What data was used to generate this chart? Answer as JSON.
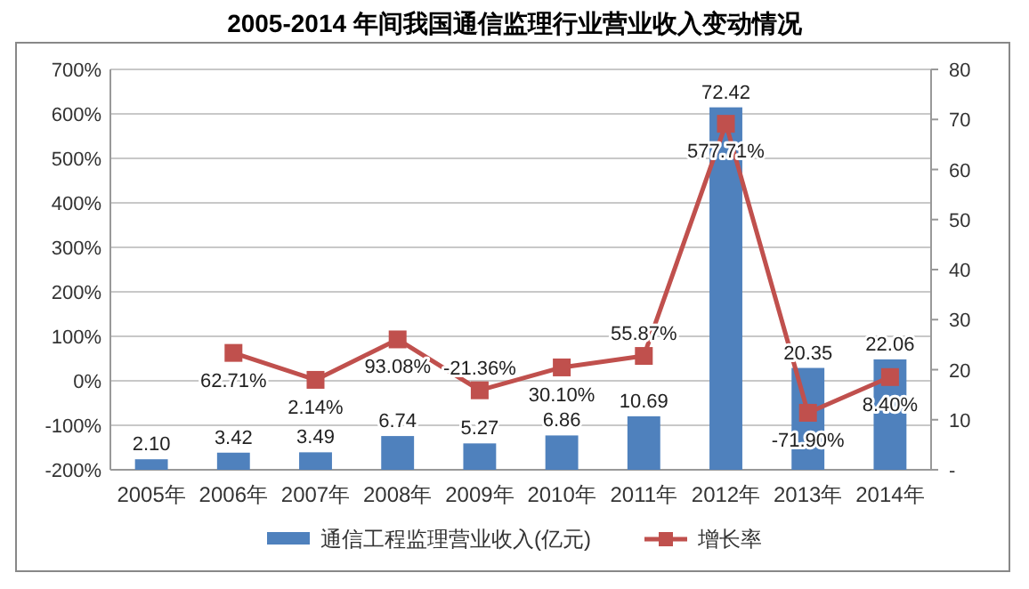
{
  "chart_data": {
    "type": "bar",
    "title": "2005-2014 年间我国通信监理行业营业收入变动情况",
    "categories": [
      "2005年",
      "2006年",
      "2007年",
      "2008年",
      "2009年",
      "2010年",
      "2011年",
      "2012年",
      "2013年",
      "2014年"
    ],
    "series": [
      {
        "name": "通信工程监理营业收入(亿元)",
        "axis": "y2",
        "color": "#4f81bd",
        "values": [
          2.1,
          3.42,
          3.49,
          6.74,
          5.27,
          6.86,
          10.69,
          72.42,
          20.35,
          22.06
        ],
        "value_labels": [
          "2.10",
          "3.42",
          "3.49",
          "6.74",
          "5.27",
          "6.86",
          "10.69",
          "72.42",
          "20.35",
          "22.06"
        ]
      },
      {
        "name": "增长率",
        "type": "line",
        "color": "#c0504d",
        "values": [
          null,
          62.71,
          2.14,
          93.08,
          -21.36,
          30.1,
          55.87,
          577.71,
          -71.9,
          8.4
        ],
        "value_labels": [
          null,
          "62.71%",
          "2.14%",
          "93.08%",
          "-21.36%",
          "30.10%",
          "55.87%",
          "577.71%",
          "-71.90%",
          "8.40%"
        ]
      }
    ],
    "ylim": [
      -200,
      700
    ],
    "yticks": [
      {
        "value": -200,
        "label": "-200%"
      },
      {
        "value": -100,
        "label": "-100%"
      },
      {
        "value": 0,
        "label": "0%"
      },
      {
        "value": 100,
        "label": "100%"
      },
      {
        "value": 200,
        "label": "200%"
      },
      {
        "value": 300,
        "label": "300%"
      },
      {
        "value": 400,
        "label": "400%"
      },
      {
        "value": 500,
        "label": "500%"
      },
      {
        "value": 600,
        "label": "600%"
      },
      {
        "value": 700,
        "label": "700%"
      }
    ],
    "y2lim": [
      0,
      80
    ],
    "y2ticks": [
      {
        "value": 0,
        "label": "-"
      },
      10,
      20,
      30,
      40,
      50,
      60,
      70,
      80
    ],
    "grid": "y",
    "legend": "bottom",
    "marker": "square",
    "line_style": "solid"
  }
}
